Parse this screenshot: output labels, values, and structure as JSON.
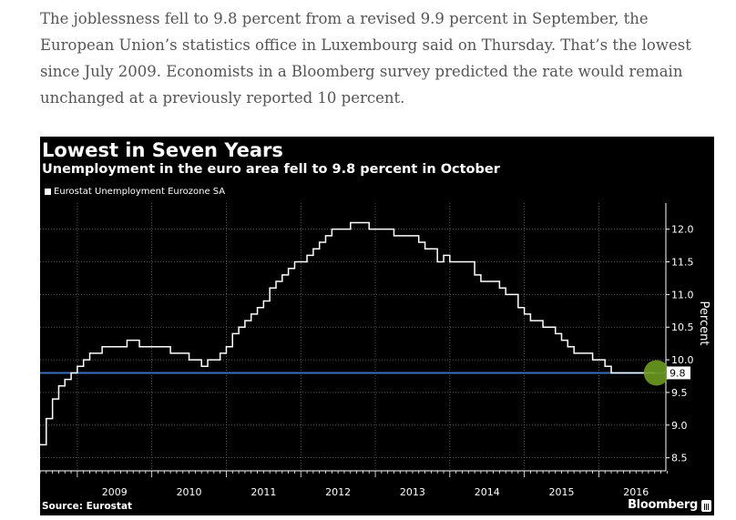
{
  "article": {
    "lines": [
      "The joblessness fell to 9.8 percent from a revised 9.9 percent in September, the",
      "European Union’s statistics office in Luxembourg said on Thursday. That’s the lowest",
      "since July 2009. Economists in a Bloomberg survey predicted the rate would remain",
      "unchanged at a previously reported 10 percent."
    ]
  },
  "chart": {
    "source": "Source: Eurostat",
    "brand": "Bloomberg",
    "brand_icon": "bar-chart-icon"
  },
  "chart_data": {
    "type": "line",
    "title": "Lowest in Seven Years",
    "subtitle": "Unemployment in the euro area fell to 9.8 percent in October",
    "ylabel": "Percent",
    "xlabel": "",
    "ylim": [
      8.3,
      12.4
    ],
    "xlim": [
      2008.5,
      2016.9
    ],
    "yticks": [
      8.5,
      9.0,
      9.5,
      10.0,
      10.5,
      11.0,
      11.5,
      12.0
    ],
    "ytick_labels": [
      "8.5",
      "9.0",
      "9.5",
      "10.0",
      "10.5",
      "11.0",
      "11.5",
      "12.0"
    ],
    "xticks": [
      2009,
      2010,
      2011,
      2012,
      2013,
      2014,
      2015,
      2016
    ],
    "xtick_labels": [
      "2009",
      "2010",
      "2011",
      "2012",
      "2013",
      "2014",
      "2015",
      "2016"
    ],
    "grid": true,
    "legend_position": "top-left",
    "reference_line": {
      "value": 9.8,
      "color": "#3a6ec0"
    },
    "last_value_label": "9.8",
    "highlight_color": "#6b9a1e",
    "series": [
      {
        "name": "Eurostat Unemployment Eurozone SA",
        "color": "#ffffff",
        "x": [
          2008.5,
          2008.583,
          2008.667,
          2008.75,
          2008.833,
          2008.917,
          2009.0,
          2009.083,
          2009.167,
          2009.25,
          2009.333,
          2009.417,
          2009.5,
          2009.583,
          2009.667,
          2009.75,
          2009.833,
          2009.917,
          2010.0,
          2010.083,
          2010.167,
          2010.25,
          2010.333,
          2010.417,
          2010.5,
          2010.583,
          2010.667,
          2010.75,
          2010.833,
          2010.917,
          2011.0,
          2011.083,
          2011.167,
          2011.25,
          2011.333,
          2011.417,
          2011.5,
          2011.583,
          2011.667,
          2011.75,
          2011.833,
          2011.917,
          2012.0,
          2012.083,
          2012.167,
          2012.25,
          2012.333,
          2012.417,
          2012.5,
          2012.583,
          2012.667,
          2012.75,
          2012.833,
          2012.917,
          2013.0,
          2013.083,
          2013.167,
          2013.25,
          2013.333,
          2013.417,
          2013.5,
          2013.583,
          2013.667,
          2013.75,
          2013.833,
          2013.917,
          2014.0,
          2014.083,
          2014.167,
          2014.25,
          2014.333,
          2014.417,
          2014.5,
          2014.583,
          2014.667,
          2014.75,
          2014.833,
          2014.917,
          2015.0,
          2015.083,
          2015.167,
          2015.25,
          2015.333,
          2015.417,
          2015.5,
          2015.583,
          2015.667,
          2015.75,
          2015.833,
          2015.917,
          2016.0,
          2016.083,
          2016.167,
          2016.25,
          2016.333,
          2016.417,
          2016.5,
          2016.583,
          2016.667,
          2016.75
        ],
        "values": [
          8.7,
          9.1,
          9.4,
          9.6,
          9.7,
          9.8,
          9.9,
          10.0,
          10.1,
          10.1,
          10.2,
          10.2,
          10.2,
          10.2,
          10.3,
          10.3,
          10.2,
          10.2,
          10.2,
          10.2,
          10.2,
          10.1,
          10.1,
          10.1,
          10.0,
          10.0,
          9.9,
          10.0,
          10.0,
          10.1,
          10.2,
          10.4,
          10.5,
          10.6,
          10.7,
          10.8,
          10.9,
          11.1,
          11.2,
          11.3,
          11.4,
          11.5,
          11.5,
          11.6,
          11.7,
          11.8,
          11.9,
          12.0,
          12.0,
          12.0,
          12.1,
          12.1,
          12.1,
          12.0,
          12.0,
          12.0,
          12.0,
          11.9,
          11.9,
          11.9,
          11.9,
          11.8,
          11.7,
          11.7,
          11.5,
          11.6,
          11.5,
          11.5,
          11.5,
          11.5,
          11.3,
          11.2,
          11.2,
          11.2,
          11.1,
          11.0,
          11.0,
          10.8,
          10.7,
          10.6,
          10.6,
          10.5,
          10.5,
          10.4,
          10.3,
          10.2,
          10.1,
          10.1,
          10.1,
          10.0,
          10.0,
          9.9,
          9.8,
          9.8,
          9.8,
          9.8,
          9.8,
          9.8,
          9.8,
          9.8
        ]
      }
    ]
  }
}
